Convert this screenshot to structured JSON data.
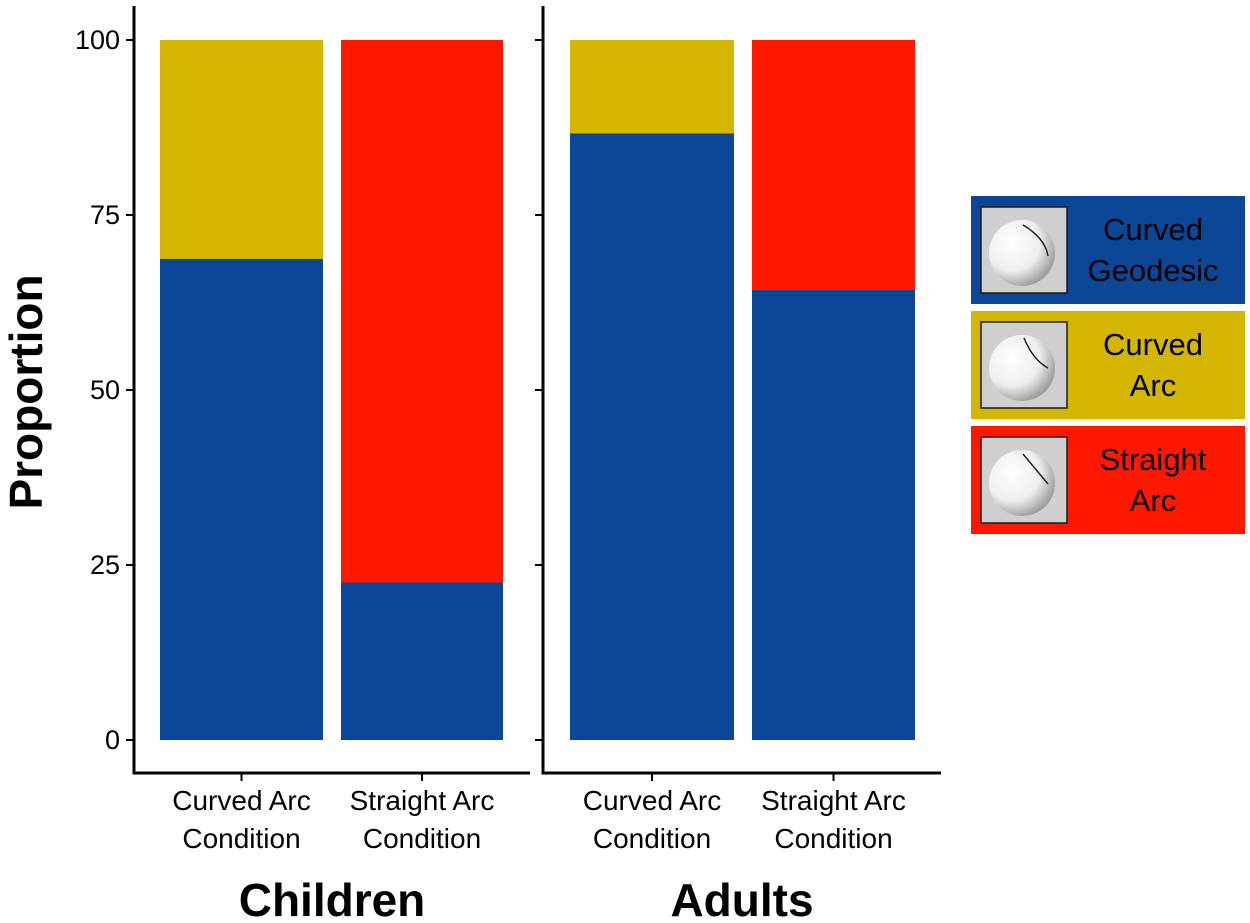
{
  "chart_data": {
    "type": "bar",
    "stacked": true,
    "ylabel": "Proportion",
    "ylim": [
      0,
      100
    ],
    "yticks": [
      0,
      25,
      50,
      75,
      100
    ],
    "legend_position": "right",
    "colors": {
      "Curved Geodesic": "#0c4797",
      "Curved Arc": "#d4b500",
      "Straight Arc": "#ff1800"
    },
    "legend": [
      {
        "key": "Curved Geodesic",
        "lines": [
          "Curved",
          "Geodesic"
        ],
        "icon": "sphere-geodesic-icon"
      },
      {
        "key": "Curved Arc",
        "lines": [
          "Curved",
          "Arc"
        ],
        "icon": "sphere-curved-arc-icon"
      },
      {
        "key": "Straight Arc",
        "lines": [
          "Straight",
          "Arc"
        ],
        "icon": "sphere-straight-arc-icon"
      }
    ],
    "facets": [
      {
        "title": "Children",
        "categories": [
          {
            "lines": [
              "Curved Arc",
              "Condition"
            ]
          },
          {
            "lines": [
              "Straight Arc",
              "Condition"
            ]
          }
        ],
        "series": [
          {
            "name": "Curved Geodesic",
            "values": [
              68.75,
              22.5
            ]
          },
          {
            "name": "Curved Arc",
            "values": [
              31.25,
              0
            ]
          },
          {
            "name": "Straight Arc",
            "values": [
              0,
              77.5
            ]
          }
        ]
      },
      {
        "title": "Adults",
        "categories": [
          {
            "lines": [
              "Curved Arc",
              "Condition"
            ]
          },
          {
            "lines": [
              "Straight Arc",
              "Condition"
            ]
          }
        ],
        "series": [
          {
            "name": "Curved Geodesic",
            "values": [
              86.67,
              64.29
            ]
          },
          {
            "name": "Curved Arc",
            "values": [
              13.33,
              0
            ]
          },
          {
            "name": "Straight Arc",
            "values": [
              0,
              35.71
            ]
          }
        ]
      }
    ]
  }
}
